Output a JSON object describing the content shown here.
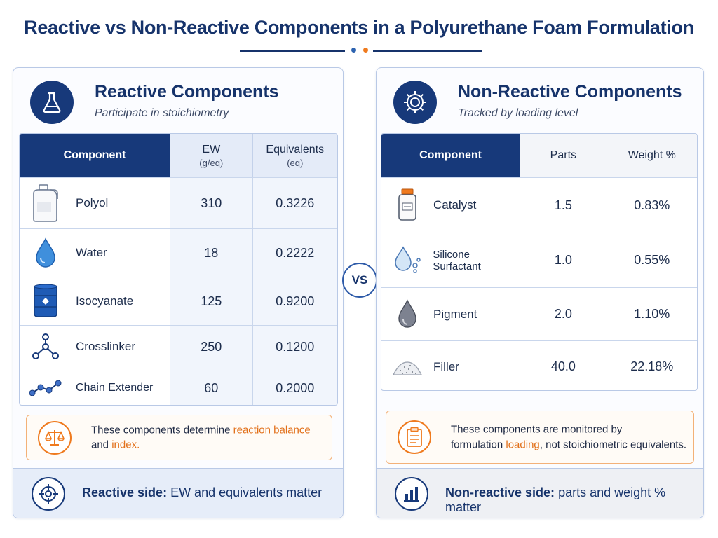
{
  "title": "Reactive vs Non-Reactive Components in a Polyurethane Foam Formulation",
  "vs_label": "VS",
  "colors": {
    "navy": "#17397a",
    "orange": "#ef7a1e",
    "accent_blue": "#2d63b0"
  },
  "reactive": {
    "title": "Reactive Components",
    "subtitle": "Participate in stoichiometry",
    "headers": {
      "component": "Component",
      "ew": "EW",
      "ew_unit": "(g/eq)",
      "equivalents": "Equivalents",
      "equivalents_unit": "(eq)"
    },
    "rows": [
      {
        "name": "Polyol",
        "ew": "310",
        "equivalents": "0.3226",
        "icon": "jug-icon"
      },
      {
        "name": "Water",
        "ew": "18",
        "equivalents": "0.2222",
        "icon": "water-drop-icon"
      },
      {
        "name": "Isocyanate",
        "ew": "125",
        "equivalents": "0.9200",
        "icon": "drum-icon"
      },
      {
        "name": "Crosslinker",
        "ew": "250",
        "equivalents": "0.1200",
        "icon": "molecule-icon"
      },
      {
        "name": "Chain Extender",
        "ew": "60",
        "equivalents": "0.2000",
        "icon": "chain-icon"
      }
    ],
    "note": {
      "before": "These components determine ",
      "highlight1": "reaction balance",
      "mid": "and ",
      "highlight2": "index."
    },
    "bottom": {
      "bold": "Reactive side:",
      "rest": " EW and equivalents matter"
    }
  },
  "nonreactive": {
    "title": "Non-Reactive Components",
    "subtitle": "Tracked by loading level",
    "headers": {
      "component": "Component",
      "parts": "Parts",
      "weight": "Weight %"
    },
    "rows": [
      {
        "name": "Catalyst",
        "parts": "1.5",
        "weight": "0.83%",
        "icon": "bottle-icon"
      },
      {
        "name": "Silicone Surfactant",
        "parts": "1.0",
        "weight": "0.55%",
        "icon": "droplet-bubbles-icon"
      },
      {
        "name": "Pigment",
        "parts": "2.0",
        "weight": "1.10%",
        "icon": "gray-drop-icon"
      },
      {
        "name": "Filler",
        "parts": "40.0",
        "weight": "22.18%",
        "icon": "powder-pile-icon"
      }
    ],
    "note": {
      "line1": "These components are monitored by",
      "before": "formulation ",
      "highlight": "loading",
      "after": ", not stoichiometric equivalents."
    },
    "bottom": {
      "bold": "Non-reactive side:",
      "rest": " parts and weight % matter"
    }
  }
}
